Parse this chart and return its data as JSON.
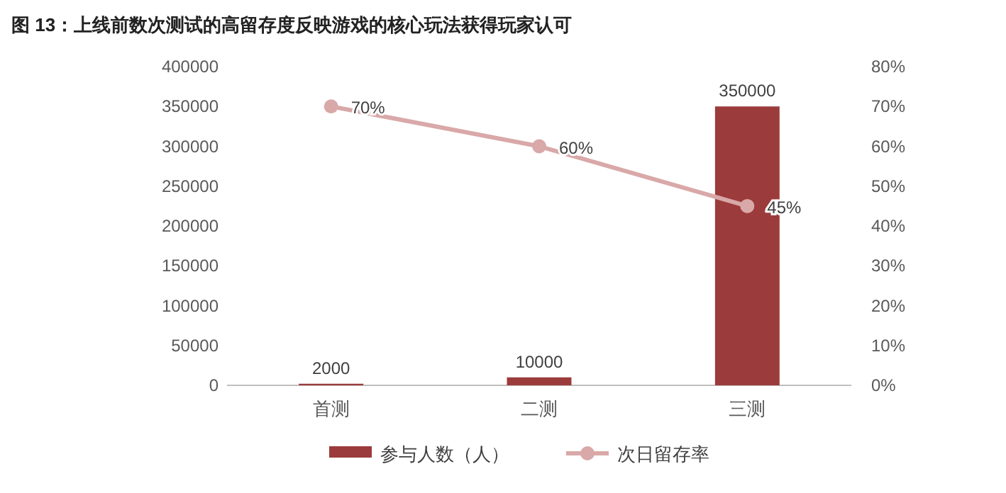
{
  "chart_data": {
    "type": "bar",
    "title": "图 13：上线前数次测试的高留存度反映游戏的核心玩法获得玩家认可",
    "categories": [
      "首测",
      "二测",
      "三测"
    ],
    "series": [
      {
        "name": "参与人数（人）",
        "color": "#9c3b3b",
        "values": [
          2000,
          10000,
          350000
        ],
        "value_labels": [
          "2000",
          "10000",
          "350000"
        ]
      },
      {
        "name": "次日留存率",
        "type": "line",
        "axis": "y2",
        "color": "#d9a8a8",
        "marker": "circle",
        "values": [
          70,
          60,
          45
        ],
        "value_labels": [
          "70%",
          "60%",
          "45%"
        ]
      }
    ],
    "ylim": [
      0,
      400000
    ],
    "yticks": [
      0,
      50000,
      100000,
      150000,
      200000,
      250000,
      300000,
      350000,
      400000
    ],
    "y2lim": [
      0,
      80
    ],
    "y2ticks": [
      {
        "value": 0,
        "label": "0%"
      },
      {
        "value": 10,
        "label": "10%"
      },
      {
        "value": 20,
        "label": "20%"
      },
      {
        "value": 30,
        "label": "30%"
      },
      {
        "value": 40,
        "label": "40%"
      },
      {
        "value": 50,
        "label": "50%"
      },
      {
        "value": 60,
        "label": "60%"
      },
      {
        "value": 70,
        "label": "70%"
      },
      {
        "value": 80,
        "label": "80%"
      }
    ],
    "grid": false,
    "legend": "bottom"
  }
}
